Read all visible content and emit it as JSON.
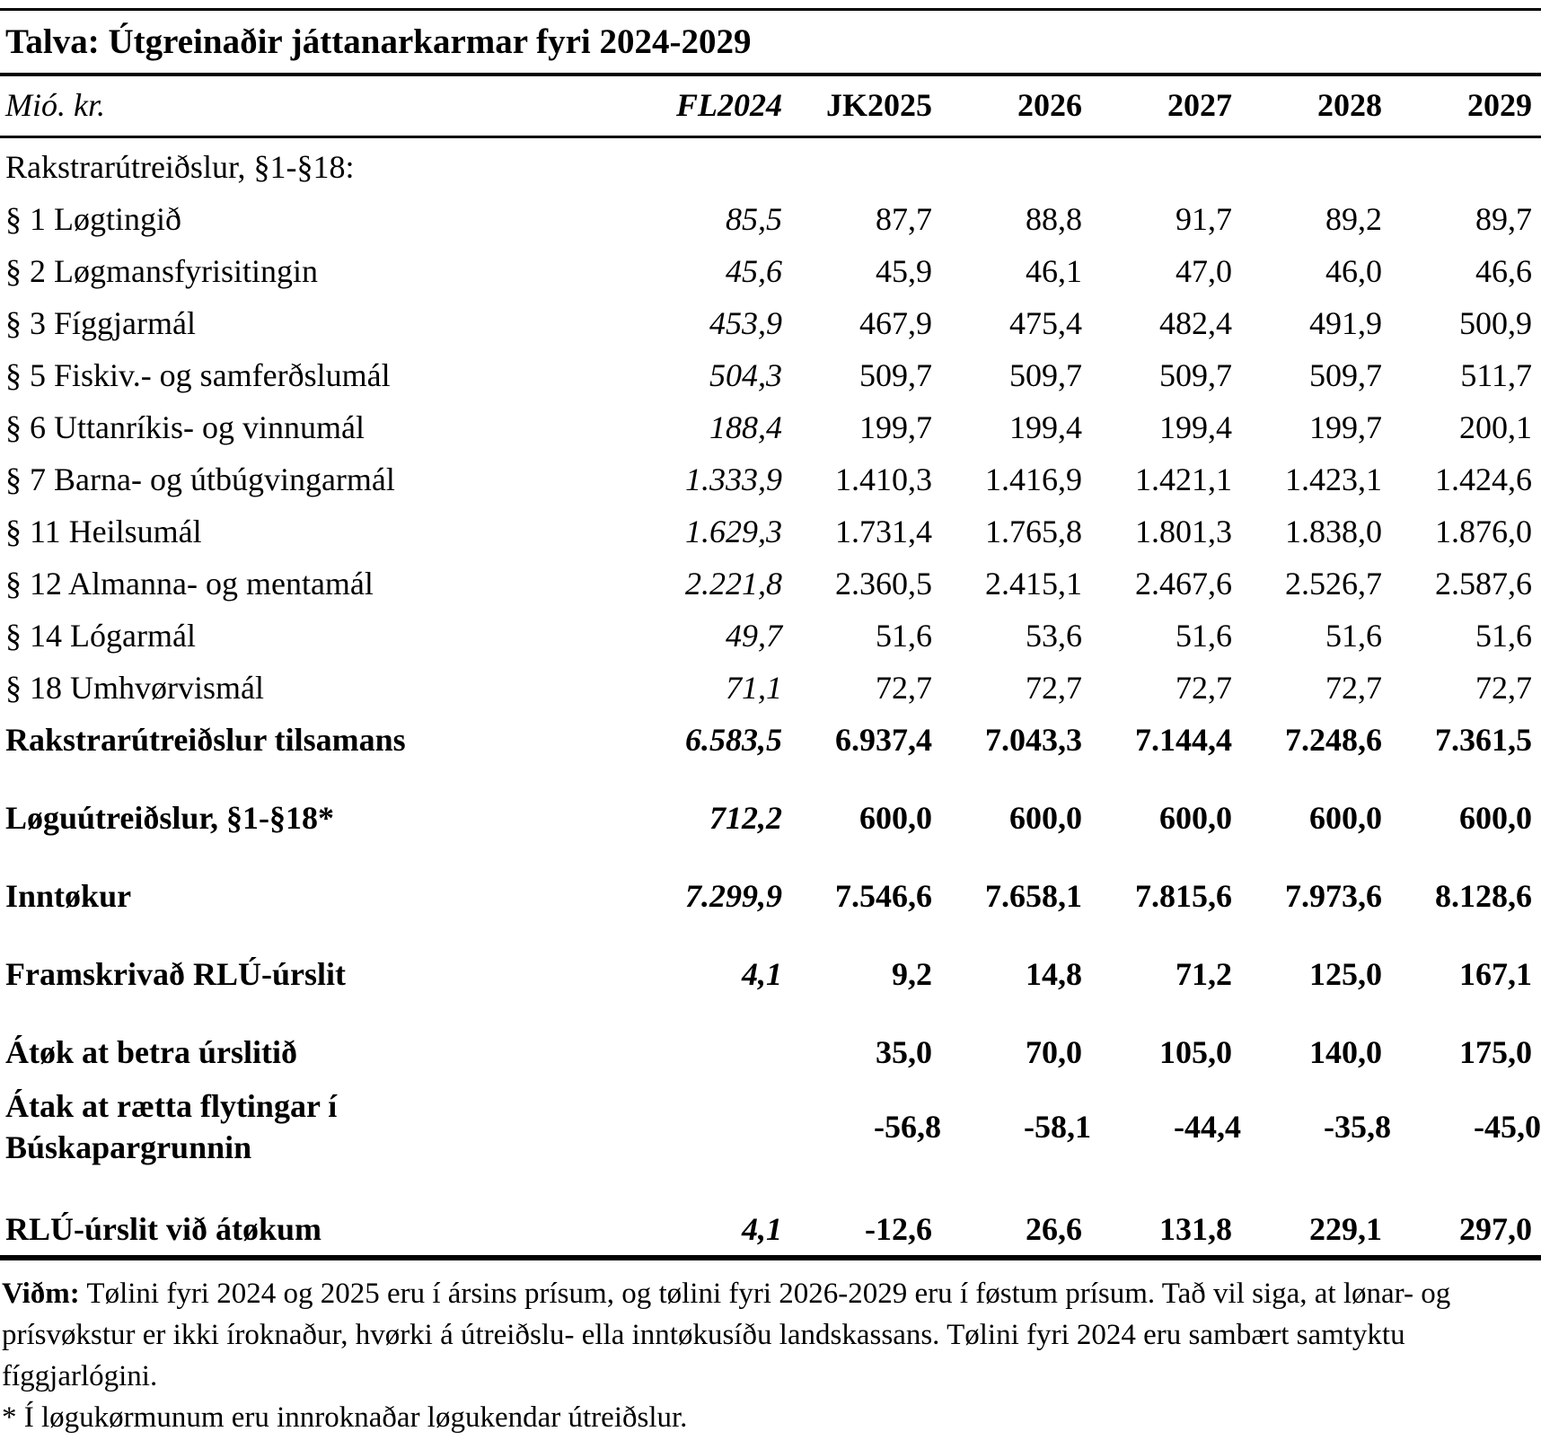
{
  "colors": {
    "text": "#000000",
    "background": "#ffffff",
    "rule": "#000000"
  },
  "table": {
    "title": "Talva: Útgreinaðir játtanarkarmar fyri 2024-2029",
    "unit_label": "Mió. kr.",
    "columns": [
      "FL2024",
      "JK2025",
      "2026",
      "2027",
      "2028",
      "2029"
    ],
    "section_header": "Rakstrarútreiðslur, §1-§18:",
    "rows": [
      {
        "label": "§ 1 Løgtingið",
        "style": "normal",
        "gap": false,
        "values": [
          "85,5",
          "87,7",
          "88,8",
          "91,7",
          "89,2",
          "89,7"
        ]
      },
      {
        "label": "§ 2 Løgmansfyrisitingin",
        "style": "normal",
        "gap": false,
        "values": [
          "45,6",
          "45,9",
          "46,1",
          "47,0",
          "46,0",
          "46,6"
        ]
      },
      {
        "label": "§ 3 Fíggjarmál",
        "style": "normal",
        "gap": false,
        "values": [
          "453,9",
          "467,9",
          "475,4",
          "482,4",
          "491,9",
          "500,9"
        ]
      },
      {
        "label": "§ 5 Fiskiv.- og samferðslumál",
        "style": "normal",
        "gap": false,
        "values": [
          "504,3",
          "509,7",
          "509,7",
          "509,7",
          "509,7",
          "511,7"
        ]
      },
      {
        "label": "§ 6 Uttanríkis- og vinnumál",
        "style": "normal",
        "gap": false,
        "values": [
          "188,4",
          "199,7",
          "199,4",
          "199,4",
          "199,7",
          "200,1"
        ]
      },
      {
        "label": "§ 7 Barna- og útbúgvingarmál",
        "style": "normal",
        "gap": false,
        "values": [
          "1.333,9",
          "1.410,3",
          "1.416,9",
          "1.421,1",
          "1.423,1",
          "1.424,6"
        ]
      },
      {
        "label": "§ 11 Heilsumál",
        "style": "normal",
        "gap": false,
        "values": [
          "1.629,3",
          "1.731,4",
          "1.765,8",
          "1.801,3",
          "1.838,0",
          "1.876,0"
        ]
      },
      {
        "label": "§ 12 Almanna- og mentamál",
        "style": "normal",
        "gap": false,
        "values": [
          "2.221,8",
          "2.360,5",
          "2.415,1",
          "2.467,6",
          "2.526,7",
          "2.587,6"
        ]
      },
      {
        "label": "§ 14 Lógarmál",
        "style": "normal",
        "gap": false,
        "values": [
          "49,7",
          "51,6",
          "53,6",
          "51,6",
          "51,6",
          "51,6"
        ]
      },
      {
        "label": "§ 18 Umhvørvismál",
        "style": "normal",
        "gap": false,
        "values": [
          "71,1",
          "72,7",
          "72,7",
          "72,7",
          "72,7",
          "72,7"
        ]
      },
      {
        "label": "Rakstrarútreiðslur tilsamans",
        "style": "bold",
        "gap": false,
        "values": [
          "6.583,5",
          "6.937,4",
          "7.043,3",
          "7.144,4",
          "7.248,6",
          "7.361,5"
        ]
      },
      {
        "label": "Løguútreiðslur, §1-§18*",
        "style": "bold",
        "gap": true,
        "values": [
          "712,2",
          "600,0",
          "600,0",
          "600,0",
          "600,0",
          "600,0"
        ]
      },
      {
        "label": "Inntøkur",
        "style": "bold",
        "gap": true,
        "values": [
          "7.299,9",
          "7.546,6",
          "7.658,1",
          "7.815,6",
          "7.973,6",
          "8.128,6"
        ]
      },
      {
        "label": "Framskrivað RLÚ-úrslit",
        "style": "bold",
        "gap": true,
        "values": [
          "4,1",
          "9,2",
          "14,8",
          "71,2",
          "125,0",
          "167,1"
        ]
      },
      {
        "label": "Átøk at betra úrslitið",
        "style": "bold",
        "gap": true,
        "values": [
          "",
          "35,0",
          "70,0",
          "105,0",
          "140,0",
          "175,0"
        ]
      },
      {
        "label": "Átak at rætta flytingar í\nBúskapargrunnin",
        "style": "bold",
        "gap": false,
        "multiline": true,
        "values": [
          "",
          "-56,8",
          "-58,1",
          "-44,4",
          "-35,8",
          "-45,0"
        ]
      },
      {
        "label": "RLÚ-úrslit við átøkum",
        "style": "bold",
        "gap": true,
        "values": [
          "4,1",
          "-12,6",
          "26,6",
          "131,8",
          "229,1",
          "297,0"
        ]
      }
    ]
  },
  "notes": {
    "remark_label": "Viðm:",
    "remark_text": " Tølini fyri 2024 og 2025 eru í ársins prísum, og tølini fyri 2026-2029 eru í føstum prísum. Tað vil siga, at lønar- og prísvøkstur er ikki íroknaður, hvørki á útreiðslu- ella inntøkusíðu landskassans. Tølini fyri 2024 eru sambært samtyktu fíggjarlógini.",
    "footnote": "* Í løgukørmunum eru innroknaðar løgukendar útreiðslur."
  }
}
